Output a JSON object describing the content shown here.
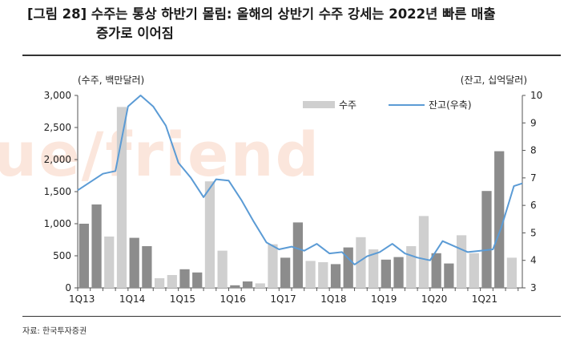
{
  "title_line1": "[그림 28] 수주는 통상 하반기 몰림: 올해의 상반기 수주 강세는 2022년 빠른 매출",
  "title_line2": "증가로 이어짐",
  "watermark": "ue/friend",
  "source": "자료: 한국투자증권",
  "colors": {
    "bar_dark": "#8c8c8c",
    "bar_light": "#cfcfcf",
    "line": "#5b9bd5"
  },
  "chart_data": {
    "type": "bar",
    "left_unit": "(수주, 백만달러)",
    "right_unit": "(잔고, 십억달러)",
    "left_ylim": [
      0,
      3000
    ],
    "left_ticks": [
      "0",
      "500",
      "1,000",
      "1,500",
      "2,000",
      "2,500",
      "3,000"
    ],
    "right_ylim": [
      3,
      10
    ],
    "right_ticks": [
      "3",
      "4",
      "5",
      "6",
      "7",
      "8",
      "9",
      "10"
    ],
    "x_tick_labels": [
      "1Q13",
      "1Q14",
      "1Q15",
      "1Q16",
      "1Q17",
      "1Q18",
      "1Q19",
      "1Q20",
      "1Q21"
    ],
    "legend": {
      "bar": "수주",
      "line": "잔고(우축)",
      "placement": "top-right"
    },
    "months": 106,
    "bars": [
      {
        "m": 0,
        "v": 1000,
        "s": "dark"
      },
      {
        "m": 1,
        "v": 1300,
        "s": "dark"
      },
      {
        "m": 2,
        "v": 800,
        "s": "light"
      },
      {
        "m": 3,
        "v": 2820,
        "s": "light"
      },
      {
        "m": 4,
        "v": 780,
        "s": "dark"
      },
      {
        "m": 5,
        "v": 650,
        "s": "dark"
      },
      {
        "m": 6,
        "v": 150,
        "s": "light"
      },
      {
        "m": 7,
        "v": 200,
        "s": "light"
      },
      {
        "m": 8,
        "v": 290,
        "s": "dark"
      },
      {
        "m": 9,
        "v": 240,
        "s": "dark"
      },
      {
        "m": 10,
        "v": 1660,
        "s": "light"
      },
      {
        "m": 11,
        "v": 580,
        "s": "light"
      },
      {
        "m": 12,
        "v": 40,
        "s": "dark"
      },
      {
        "m": 13,
        "v": 100,
        "s": "dark"
      },
      {
        "m": 14,
        "v": 70,
        "s": "light"
      },
      {
        "m": 15,
        "v": 680,
        "s": "light"
      },
      {
        "m": 16,
        "v": 470,
        "s": "dark"
      },
      {
        "m": 17,
        "v": 1020,
        "s": "dark"
      },
      {
        "m": 18,
        "v": 420,
        "s": "light"
      },
      {
        "m": 19,
        "v": 400,
        "s": "light"
      },
      {
        "m": 20,
        "v": 370,
        "s": "dark"
      },
      {
        "m": 21,
        "v": 630,
        "s": "dark"
      },
      {
        "m": 22,
        "v": 790,
        "s": "light"
      },
      {
        "m": 23,
        "v": 600,
        "s": "light"
      },
      {
        "m": 24,
        "v": 440,
        "s": "dark"
      },
      {
        "m": 25,
        "v": 480,
        "s": "dark"
      },
      {
        "m": 26,
        "v": 650,
        "s": "light"
      },
      {
        "m": 27,
        "v": 1120,
        "s": "light"
      },
      {
        "m": 28,
        "v": 540,
        "s": "dark"
      },
      {
        "m": 29,
        "v": 380,
        "s": "dark"
      },
      {
        "m": 30,
        "v": 820,
        "s": "light"
      },
      {
        "m": 31,
        "v": 540,
        "s": "light"
      },
      {
        "m": 32,
        "v": 1510,
        "s": "dark"
      },
      {
        "m": 33,
        "v": 2130,
        "s": "dark"
      },
      {
        "m": 34,
        "v": 470,
        "s": "light"
      }
    ],
    "backlog": [
      [
        0,
        6.55
      ],
      [
        6,
        7.15
      ],
      [
        9,
        7.25
      ],
      [
        12,
        9.6
      ],
      [
        15,
        10.0
      ],
      [
        18,
        9.6
      ],
      [
        21,
        8.9
      ],
      [
        24,
        7.55
      ],
      [
        27,
        7.0
      ],
      [
        30,
        6.3
      ],
      [
        33,
        6.95
      ],
      [
        36,
        6.9
      ],
      [
        39,
        6.2
      ],
      [
        42,
        5.4
      ],
      [
        45,
        4.65
      ],
      [
        48,
        4.4
      ],
      [
        51,
        4.5
      ],
      [
        54,
        4.35
      ],
      [
        57,
        4.6
      ],
      [
        60,
        4.25
      ],
      [
        63,
        4.3
      ],
      [
        66,
        3.85
      ],
      [
        69,
        4.15
      ],
      [
        72,
        4.3
      ],
      [
        75,
        4.6
      ],
      [
        78,
        4.25
      ],
      [
        81,
        4.1
      ],
      [
        84,
        4.0
      ],
      [
        87,
        4.7
      ],
      [
        90,
        4.5
      ],
      [
        93,
        4.3
      ],
      [
        96,
        4.35
      ],
      [
        99,
        4.4
      ],
      [
        101,
        5.2
      ],
      [
        104,
        6.7
      ],
      [
        106,
        6.8
      ]
    ]
  }
}
